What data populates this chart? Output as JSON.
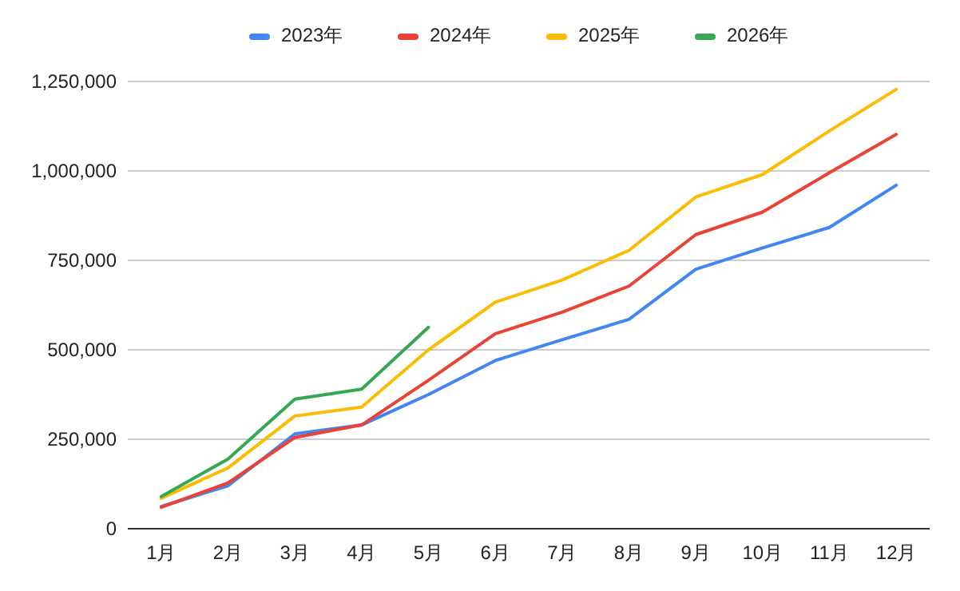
{
  "chart_data": {
    "type": "line",
    "categories": [
      "1月",
      "2月",
      "3月",
      "4月",
      "5月",
      "6月",
      "7月",
      "8月",
      "9月",
      "10月",
      "11月",
      "12月"
    ],
    "series": [
      {
        "name": "2023年",
        "color": "#4285f4",
        "values": [
          62000,
          120000,
          265000,
          290000,
          375000,
          470000,
          528000,
          585000,
          725000,
          785000,
          842000,
          960000
        ]
      },
      {
        "name": "2024年",
        "color": "#ea4335",
        "values": [
          60000,
          128000,
          255000,
          290000,
          415000,
          545000,
          605000,
          678000,
          822000,
          885000,
          995000,
          1102000
        ]
      },
      {
        "name": "2025年",
        "color": "#fbbc04",
        "values": [
          85000,
          170000,
          315000,
          340000,
          500000,
          633000,
          695000,
          778000,
          927000,
          990000,
          1112000,
          1228000
        ]
      },
      {
        "name": "2026年",
        "color": "#34a853",
        "values": [
          90000,
          195000,
          362000,
          390000,
          563000,
          null,
          null,
          null,
          null,
          null,
          null,
          null
        ]
      }
    ],
    "ylim": [
      0,
      1250000
    ],
    "yticks": [
      {
        "value": 0,
        "label": "0"
      },
      {
        "value": 250000,
        "label": "250,000"
      },
      {
        "value": 500000,
        "label": "500,000"
      },
      {
        "value": 750000,
        "label": "750,000"
      },
      {
        "value": 1000000,
        "label": "1,000,000"
      },
      {
        "value": 1250000,
        "label": "1,250,000"
      }
    ],
    "grid": "y",
    "legend": "top",
    "marker": "none",
    "line_style": "solid"
  }
}
